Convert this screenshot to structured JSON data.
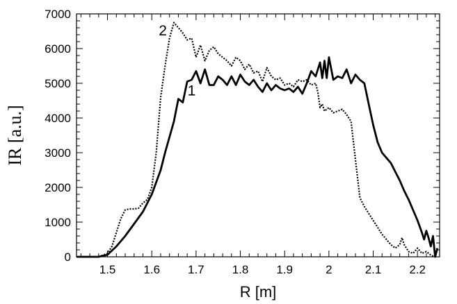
{
  "chart_data": {
    "type": "line",
    "xlabel": "R  [m]",
    "ylabel": "IR  [a.u.]",
    "xlim": [
      1.43,
      2.25
    ],
    "ylim": [
      0,
      7000
    ],
    "x_ticks": [
      "1.5",
      "1.6",
      "1.7",
      "1.8",
      "1.9",
      "2",
      "2.1",
      "2.2"
    ],
    "y_ticks": [
      "0",
      "1000",
      "2000",
      "3000",
      "4000",
      "5000",
      "6000",
      "7000"
    ],
    "grid": false,
    "legend": "none",
    "annotations": [
      "1",
      "2"
    ],
    "series": [
      {
        "tag": "1",
        "style": "solid",
        "color": "#000000",
        "points": [
          [
            1.43,
            0
          ],
          [
            1.48,
            0
          ],
          [
            1.5,
            60
          ],
          [
            1.52,
            300
          ],
          [
            1.54,
            600
          ],
          [
            1.56,
            950
          ],
          [
            1.58,
            1300
          ],
          [
            1.6,
            1800
          ],
          [
            1.62,
            2500
          ],
          [
            1.63,
            3000
          ],
          [
            1.65,
            3900
          ],
          [
            1.66,
            4550
          ],
          [
            1.67,
            4450
          ],
          [
            1.68,
            5050
          ],
          [
            1.69,
            5100
          ],
          [
            1.7,
            5350
          ],
          [
            1.71,
            5000
          ],
          [
            1.72,
            5400
          ],
          [
            1.73,
            4950
          ],
          [
            1.74,
            4950
          ],
          [
            1.75,
            5200
          ],
          [
            1.76,
            5100
          ],
          [
            1.77,
            4950
          ],
          [
            1.78,
            5200
          ],
          [
            1.79,
            4950
          ],
          [
            1.8,
            5250
          ],
          [
            1.81,
            5050
          ],
          [
            1.82,
            4950
          ],
          [
            1.83,
            5100
          ],
          [
            1.84,
            4900
          ],
          [
            1.85,
            4750
          ],
          [
            1.86,
            5000
          ],
          [
            1.87,
            4800
          ],
          [
            1.88,
            4950
          ],
          [
            1.89,
            4850
          ],
          [
            1.9,
            4800
          ],
          [
            1.91,
            4850
          ],
          [
            1.92,
            4750
          ],
          [
            1.93,
            4900
          ],
          [
            1.94,
            4700
          ],
          [
            1.95,
            5000
          ],
          [
            1.96,
            5350
          ],
          [
            1.97,
            5200
          ],
          [
            1.98,
            5600
          ],
          [
            1.985,
            5150
          ],
          [
            1.99,
            5650
          ],
          [
            1.995,
            5150
          ],
          [
            2.0,
            5750
          ],
          [
            2.01,
            5100
          ],
          [
            2.02,
            5200
          ],
          [
            2.03,
            5150
          ],
          [
            2.04,
            5400
          ],
          [
            2.05,
            5000
          ],
          [
            2.06,
            5250
          ],
          [
            2.07,
            5100
          ],
          [
            2.08,
            5000
          ],
          [
            2.09,
            4400
          ],
          [
            2.1,
            3800
          ],
          [
            2.11,
            3300
          ],
          [
            2.12,
            3000
          ],
          [
            2.13,
            2850
          ],
          [
            2.14,
            2700
          ],
          [
            2.15,
            2450
          ],
          [
            2.16,
            2200
          ],
          [
            2.17,
            1900
          ],
          [
            2.18,
            1650
          ],
          [
            2.19,
            1350
          ],
          [
            2.2,
            1050
          ],
          [
            2.21,
            700
          ],
          [
            2.215,
            500
          ],
          [
            2.22,
            750
          ],
          [
            2.225,
            550
          ],
          [
            2.23,
            300
          ],
          [
            2.235,
            600
          ],
          [
            2.24,
            0
          ],
          [
            2.245,
            250
          ]
        ]
      },
      {
        "tag": "2",
        "style": "dotted",
        "color": "#000000",
        "points": [
          [
            1.43,
            0
          ],
          [
            1.48,
            0
          ],
          [
            1.5,
            100
          ],
          [
            1.51,
            300
          ],
          [
            1.52,
            700
          ],
          [
            1.53,
            1100
          ],
          [
            1.54,
            1350
          ],
          [
            1.55,
            1380
          ],
          [
            1.56,
            1380
          ],
          [
            1.57,
            1400
          ],
          [
            1.58,
            1550
          ],
          [
            1.59,
            1650
          ],
          [
            1.6,
            2000
          ],
          [
            1.61,
            3000
          ],
          [
            1.62,
            4600
          ],
          [
            1.63,
            5500
          ],
          [
            1.64,
            6300
          ],
          [
            1.65,
            6750
          ],
          [
            1.66,
            6600
          ],
          [
            1.67,
            6450
          ],
          [
            1.68,
            6250
          ],
          [
            1.69,
            6300
          ],
          [
            1.7,
            5750
          ],
          [
            1.71,
            6100
          ],
          [
            1.72,
            5650
          ],
          [
            1.73,
            5950
          ],
          [
            1.74,
            6050
          ],
          [
            1.75,
            5850
          ],
          [
            1.76,
            5750
          ],
          [
            1.77,
            5650
          ],
          [
            1.78,
            5500
          ],
          [
            1.79,
            5750
          ],
          [
            1.8,
            5650
          ],
          [
            1.81,
            5400
          ],
          [
            1.82,
            5550
          ],
          [
            1.83,
            5300
          ],
          [
            1.84,
            5350
          ],
          [
            1.85,
            5050
          ],
          [
            1.86,
            5450
          ],
          [
            1.87,
            5200
          ],
          [
            1.88,
            5100
          ],
          [
            1.89,
            5150
          ],
          [
            1.9,
            4950
          ],
          [
            1.91,
            5000
          ],
          [
            1.92,
            4900
          ],
          [
            1.93,
            5100
          ],
          [
            1.94,
            5050
          ],
          [
            1.95,
            5100
          ],
          [
            1.96,
            4950
          ],
          [
            1.97,
            5000
          ],
          [
            1.975,
            4750
          ],
          [
            1.98,
            4300
          ],
          [
            1.985,
            4400
          ],
          [
            1.99,
            4200
          ],
          [
            2.0,
            4300
          ],
          [
            2.01,
            4150
          ],
          [
            2.02,
            4200
          ],
          [
            2.03,
            4250
          ],
          [
            2.04,
            4100
          ],
          [
            2.05,
            3900
          ],
          [
            2.06,
            2800
          ],
          [
            2.07,
            1700
          ],
          [
            2.08,
            1450
          ],
          [
            2.09,
            1250
          ],
          [
            2.1,
            1050
          ],
          [
            2.11,
            850
          ],
          [
            2.12,
            650
          ],
          [
            2.13,
            500
          ],
          [
            2.14,
            350
          ],
          [
            2.15,
            250
          ],
          [
            2.16,
            350
          ],
          [
            2.165,
            550
          ],
          [
            2.17,
            350
          ],
          [
            2.18,
            150
          ],
          [
            2.19,
            100
          ],
          [
            2.2,
            250
          ],
          [
            2.21,
            100
          ],
          [
            2.22,
            150
          ],
          [
            2.23,
            50
          ],
          [
            2.24,
            0
          ]
        ]
      }
    ]
  }
}
